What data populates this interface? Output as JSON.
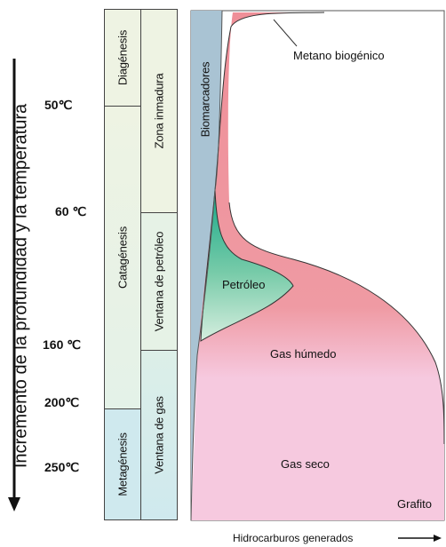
{
  "axes": {
    "y_label": "Incremento de la profundidad y la temperatura",
    "x_label": "Hidrocarburos generados"
  },
  "temperatures": [
    "50℃",
    "60 ℃",
    "160 ℃",
    "200℃",
    "250℃"
  ],
  "stages": {
    "diagenesis": "Diagénesis",
    "catagenesis": "Catagénesis",
    "metagenesis": "Metagénesis"
  },
  "zones": {
    "immature": "Zona inmadura",
    "oil_window": "Ventana de petróleo",
    "gas_window": "Ventana de gas"
  },
  "biomarkers": "Biomarcadores",
  "regions": {
    "biogenic_methane": "Metano biogénico",
    "oil": "Petróleo",
    "wet_gas": "Gas húmedo",
    "dry_gas": "Gas seco",
    "graphite": "Grafito"
  },
  "colors": {
    "biomarker_band": "#a9c3d3",
    "oil": "#1fae8e",
    "wet_gas": "#ef8f98",
    "dry_gas": "#f6c9df",
    "diagenesis_fill": "#eef3e3",
    "catagenesis_fill": "#eaf4ea",
    "metagenesis_fill": "#cfe9ee"
  }
}
